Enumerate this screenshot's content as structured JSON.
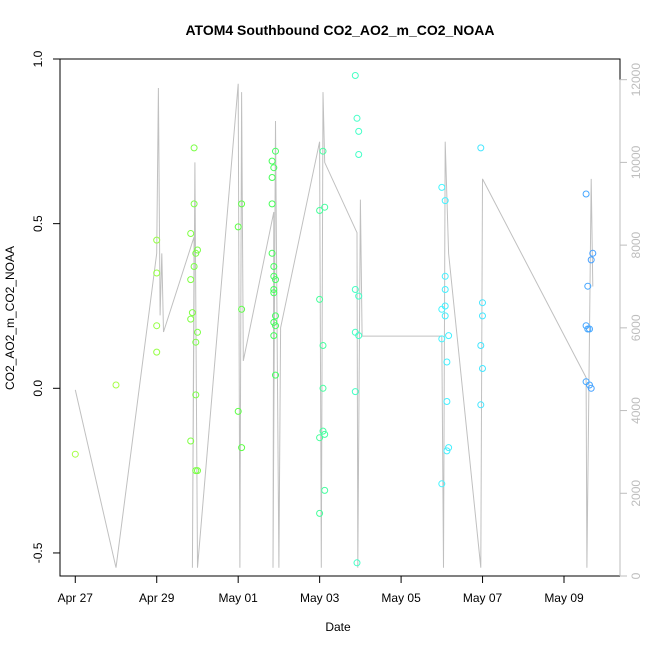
{
  "chart_data": {
    "type": "scatter",
    "title": "ATOM4 Southbound CO2_AO2_m_CO2_NOAA",
    "xlabel": "Date",
    "ylabel": "CO2_AO2_m_CO2_NOAA",
    "x_range": [
      "2017-04-26T15:00",
      "2017-05-10T09:00"
    ],
    "ylim": [
      -0.57,
      1.0
    ],
    "y2lim": [
      0,
      12500
    ],
    "x_ticks": [
      {
        "date": "2017-04-27",
        "label": "Apr 27"
      },
      {
        "date": "2017-04-29",
        "label": "Apr 29"
      },
      {
        "date": "2017-05-01",
        "label": "May 01"
      },
      {
        "date": "2017-05-03",
        "label": "May 03"
      },
      {
        "date": "2017-05-05",
        "label": "May 05"
      },
      {
        "date": "2017-05-07",
        "label": "May 07"
      },
      {
        "date": "2017-05-09",
        "label": "May 09"
      }
    ],
    "y_ticks": [
      {
        "value": -0.5,
        "label": "-0.5"
      },
      {
        "value": 0.0,
        "label": "0.0"
      },
      {
        "value": 0.5,
        "label": "0.5"
      },
      {
        "value": 1.0,
        "label": "1.0"
      }
    ],
    "y2_ticks": [
      {
        "value": 0,
        "label": "0"
      },
      {
        "value": 2000,
        "label": "2000"
      },
      {
        "value": 4000,
        "label": "4000"
      },
      {
        "value": 6000,
        "label": "6000"
      },
      {
        "value": 8000,
        "label": "8000"
      },
      {
        "value": 10000,
        "label": "10000"
      },
      {
        "value": 12000,
        "label": "12000"
      }
    ],
    "grid": false,
    "points": [
      {
        "x": "2017-04-27T00:00",
        "y": -0.2,
        "color": "#a6ff45"
      },
      {
        "x": "2017-04-28T00:00",
        "y": 0.01,
        "color": "#a6ff45"
      },
      {
        "x": "2017-04-29T00:00",
        "y": 0.35,
        "color": "#96ff45"
      },
      {
        "x": "2017-04-29T00:00",
        "y": 0.45,
        "color": "#96ff45"
      },
      {
        "x": "2017-04-29T00:00",
        "y": 0.19,
        "color": "#96ff45"
      },
      {
        "x": "2017-04-29T00:00",
        "y": 0.11,
        "color": "#96ff45"
      },
      {
        "x": "2017-04-29T20:00",
        "y": 0.47,
        "color": "#80ff45"
      },
      {
        "x": "2017-04-29T20:00",
        "y": 0.33,
        "color": "#80ff45"
      },
      {
        "x": "2017-04-29T20:00",
        "y": 0.21,
        "color": "#80ff45"
      },
      {
        "x": "2017-04-29T20:00",
        "y": -0.16,
        "color": "#80ff45"
      },
      {
        "x": "2017-04-29T21:00",
        "y": 0.23,
        "color": "#80ff45"
      },
      {
        "x": "2017-04-29T22:00",
        "y": 0.73,
        "color": "#7aff45"
      },
      {
        "x": "2017-04-29T22:00",
        "y": 0.56,
        "color": "#7aff45"
      },
      {
        "x": "2017-04-29T22:00",
        "y": 0.37,
        "color": "#7aff45"
      },
      {
        "x": "2017-04-29T23:00",
        "y": 0.41,
        "color": "#7aff45"
      },
      {
        "x": "2017-04-29T23:00",
        "y": 0.14,
        "color": "#7aff45"
      },
      {
        "x": "2017-04-29T23:00",
        "y": -0.02,
        "color": "#7aff45"
      },
      {
        "x": "2017-04-29T23:00",
        "y": -0.25,
        "color": "#7aff45"
      },
      {
        "x": "2017-04-30T00:00",
        "y": 0.42,
        "color": "#7aff45"
      },
      {
        "x": "2017-04-30T00:00",
        "y": 0.17,
        "color": "#7aff45"
      },
      {
        "x": "2017-04-30T00:00",
        "y": -0.25,
        "color": "#7aff45"
      },
      {
        "x": "2017-05-01T00:00",
        "y": 0.49,
        "color": "#5cff45"
      },
      {
        "x": "2017-05-01T00:00",
        "y": -0.07,
        "color": "#5cff45"
      },
      {
        "x": "2017-05-01T02:00",
        "y": 0.56,
        "color": "#5cff45"
      },
      {
        "x": "2017-05-01T02:00",
        "y": 0.24,
        "color": "#5cff45"
      },
      {
        "x": "2017-05-01T02:00",
        "y": -0.18,
        "color": "#5cff45"
      },
      {
        "x": "2017-05-01T20:00",
        "y": 0.69,
        "color": "#45ff57"
      },
      {
        "x": "2017-05-01T20:00",
        "y": 0.64,
        "color": "#45ff57"
      },
      {
        "x": "2017-05-01T20:00",
        "y": 0.56,
        "color": "#45ff57"
      },
      {
        "x": "2017-05-01T20:00",
        "y": 0.41,
        "color": "#45ff57"
      },
      {
        "x": "2017-05-01T21:00",
        "y": 0.67,
        "color": "#45ff5c"
      },
      {
        "x": "2017-05-01T21:00",
        "y": 0.37,
        "color": "#45ff5c"
      },
      {
        "x": "2017-05-01T21:00",
        "y": 0.34,
        "color": "#45ff5c"
      },
      {
        "x": "2017-05-01T21:00",
        "y": 0.3,
        "color": "#45ff5c"
      },
      {
        "x": "2017-05-01T21:00",
        "y": 0.29,
        "color": "#45ff5c"
      },
      {
        "x": "2017-05-01T21:00",
        "y": 0.2,
        "color": "#45ff5c"
      },
      {
        "x": "2017-05-01T21:00",
        "y": 0.16,
        "color": "#45ff5c"
      },
      {
        "x": "2017-05-01T22:00",
        "y": 0.72,
        "color": "#45ff60"
      },
      {
        "x": "2017-05-01T22:00",
        "y": 0.33,
        "color": "#45ff60"
      },
      {
        "x": "2017-05-01T22:00",
        "y": 0.22,
        "color": "#45ff60"
      },
      {
        "x": "2017-05-01T22:00",
        "y": 0.19,
        "color": "#45ff60"
      },
      {
        "x": "2017-05-01T22:00",
        "y": 0.04,
        "color": "#45ff60"
      },
      {
        "x": "2017-05-03T00:00",
        "y": 0.54,
        "color": "#45ff9a"
      },
      {
        "x": "2017-05-03T00:00",
        "y": 0.27,
        "color": "#45ff9a"
      },
      {
        "x": "2017-05-03T00:00",
        "y": -0.15,
        "color": "#45ff9a"
      },
      {
        "x": "2017-05-03T00:00",
        "y": -0.38,
        "color": "#45ff9a"
      },
      {
        "x": "2017-05-03T02:00",
        "y": 0.72,
        "color": "#45ffa0"
      },
      {
        "x": "2017-05-03T02:00",
        "y": 0.13,
        "color": "#45ffa0"
      },
      {
        "x": "2017-05-03T02:00",
        "y": 0.0,
        "color": "#45ffa0"
      },
      {
        "x": "2017-05-03T02:00",
        "y": -0.13,
        "color": "#45ffa0"
      },
      {
        "x": "2017-05-03T03:00",
        "y": 0.55,
        "color": "#45ffa0"
      },
      {
        "x": "2017-05-03T03:00",
        "y": -0.14,
        "color": "#45ffa0"
      },
      {
        "x": "2017-05-03T03:00",
        "y": -0.31,
        "color": "#45ffa0"
      },
      {
        "x": "2017-05-03T21:00",
        "y": 0.95,
        "color": "#45ffc4"
      },
      {
        "x": "2017-05-03T21:00",
        "y": 0.3,
        "color": "#45ffc4"
      },
      {
        "x": "2017-05-03T21:00",
        "y": 0.17,
        "color": "#45ffc4"
      },
      {
        "x": "2017-05-03T21:00",
        "y": -0.01,
        "color": "#45ffc4"
      },
      {
        "x": "2017-05-03T22:00",
        "y": 0.82,
        "color": "#45ffc8"
      },
      {
        "x": "2017-05-03T22:00",
        "y": -0.53,
        "color": "#45ffc8"
      },
      {
        "x": "2017-05-03T23:00",
        "y": 0.78,
        "color": "#45ffc8"
      },
      {
        "x": "2017-05-03T23:00",
        "y": 0.71,
        "color": "#45ffc8"
      },
      {
        "x": "2017-05-03T23:00",
        "y": 0.28,
        "color": "#45ffc8"
      },
      {
        "x": "2017-05-03T23:00",
        "y": 0.16,
        "color": "#45ffc8"
      },
      {
        "x": "2017-05-06T00:00",
        "y": 0.61,
        "color": "#45f5ff"
      },
      {
        "x": "2017-05-06T00:00",
        "y": 0.24,
        "color": "#45f5ff"
      },
      {
        "x": "2017-05-06T00:00",
        "y": 0.15,
        "color": "#45f5ff"
      },
      {
        "x": "2017-05-06T00:00",
        "y": -0.29,
        "color": "#45f5ff"
      },
      {
        "x": "2017-05-06T02:00",
        "y": 0.57,
        "color": "#45f0ff"
      },
      {
        "x": "2017-05-06T02:00",
        "y": 0.34,
        "color": "#45f0ff"
      },
      {
        "x": "2017-05-06T02:00",
        "y": 0.3,
        "color": "#45f0ff"
      },
      {
        "x": "2017-05-06T02:00",
        "y": 0.25,
        "color": "#45f0ff"
      },
      {
        "x": "2017-05-06T02:00",
        "y": 0.22,
        "color": "#45f0ff"
      },
      {
        "x": "2017-05-06T03:00",
        "y": 0.08,
        "color": "#45f0ff"
      },
      {
        "x": "2017-05-06T03:00",
        "y": -0.04,
        "color": "#45f0ff"
      },
      {
        "x": "2017-05-06T03:00",
        "y": -0.19,
        "color": "#45f0ff"
      },
      {
        "x": "2017-05-06T04:00",
        "y": 0.16,
        "color": "#45f0ff"
      },
      {
        "x": "2017-05-06T04:00",
        "y": -0.18,
        "color": "#45f0ff"
      },
      {
        "x": "2017-05-06T23:00",
        "y": 0.73,
        "color": "#45e6ff"
      },
      {
        "x": "2017-05-06T23:00",
        "y": 0.13,
        "color": "#45e6ff"
      },
      {
        "x": "2017-05-06T23:00",
        "y": -0.05,
        "color": "#45e6ff"
      },
      {
        "x": "2017-05-07T00:00",
        "y": 0.26,
        "color": "#45e6ff"
      },
      {
        "x": "2017-05-07T00:00",
        "y": 0.22,
        "color": "#45e6ff"
      },
      {
        "x": "2017-05-07T00:00",
        "y": 0.06,
        "color": "#45e6ff"
      },
      {
        "x": "2017-05-09T13:00",
        "y": 0.59,
        "color": "#45a6ff"
      },
      {
        "x": "2017-05-09T13:00",
        "y": 0.19,
        "color": "#45a6ff"
      },
      {
        "x": "2017-05-09T13:00",
        "y": 0.02,
        "color": "#45a6ff"
      },
      {
        "x": "2017-05-09T14:00",
        "y": 0.31,
        "color": "#45a6ff"
      },
      {
        "x": "2017-05-09T14:00",
        "y": 0.18,
        "color": "#45a6ff"
      },
      {
        "x": "2017-05-09T15:00",
        "y": 0.18,
        "color": "#45a6ff"
      },
      {
        "x": "2017-05-09T15:00",
        "y": 0.01,
        "color": "#45a6ff"
      },
      {
        "x": "2017-05-09T16:00",
        "y": 0.39,
        "color": "#45a0ff"
      },
      {
        "x": "2017-05-09T16:00",
        "y": 0.0,
        "color": "#45a0ff"
      },
      {
        "x": "2017-05-09T17:00",
        "y": 0.41,
        "color": "#45a0ff"
      }
    ],
    "line_series": {
      "color": "#c0c0c0",
      "axis": "right",
      "points": [
        [
          "2017-04-27T00:00",
          4500
        ],
        [
          "2017-04-28T00:00",
          200
        ],
        [
          "2017-04-29T00:00",
          7800
        ],
        [
          "2017-04-29T01:00",
          11800
        ],
        [
          "2017-04-29T02:00",
          6300
        ],
        [
          "2017-04-29T03:00",
          7800
        ],
        [
          "2017-04-29T04:00",
          5900
        ],
        [
          "2017-04-29T22:00",
          8200
        ],
        [
          "2017-04-29T21:00",
          200
        ],
        [
          "2017-04-29T22:30",
          10000
        ],
        [
          "2017-04-30T00:00",
          200
        ],
        [
          "2017-05-01T00:00",
          11900
        ],
        [
          "2017-05-01T01:00",
          200
        ],
        [
          "2017-05-01T02:00",
          11700
        ],
        [
          "2017-05-01T03:00",
          5200
        ],
        [
          "2017-05-01T21:00",
          8800
        ],
        [
          "2017-05-01T20:30",
          200
        ],
        [
          "2017-05-01T22:00",
          11000
        ],
        [
          "2017-05-02T00:00",
          200
        ],
        [
          "2017-05-02T01:00",
          6000
        ],
        [
          "2017-05-03T00:00",
          10500
        ],
        [
          "2017-05-03T01:00",
          200
        ],
        [
          "2017-05-03T02:00",
          11700
        ],
        [
          "2017-05-03T03:00",
          10000
        ],
        [
          "2017-05-03T22:00",
          8300
        ],
        [
          "2017-05-03T22:30",
          200
        ],
        [
          "2017-05-04T00:00",
          9100
        ],
        [
          "2017-05-04T01:00",
          5800
        ],
        [
          "2017-05-06T00:00",
          5800
        ],
        [
          "2017-05-06T01:00",
          200
        ],
        [
          "2017-05-06T02:00",
          10500
        ],
        [
          "2017-05-06T04:00",
          7800
        ],
        [
          "2017-05-06T23:00",
          200
        ],
        [
          "2017-05-07T00:00",
          9600
        ],
        [
          "2017-05-09T13:00",
          4800
        ],
        [
          "2017-05-09T13:30",
          200
        ],
        [
          "2017-05-09T16:00",
          9600
        ],
        [
          "2017-05-09T17:00",
          7000
        ]
      ]
    }
  }
}
